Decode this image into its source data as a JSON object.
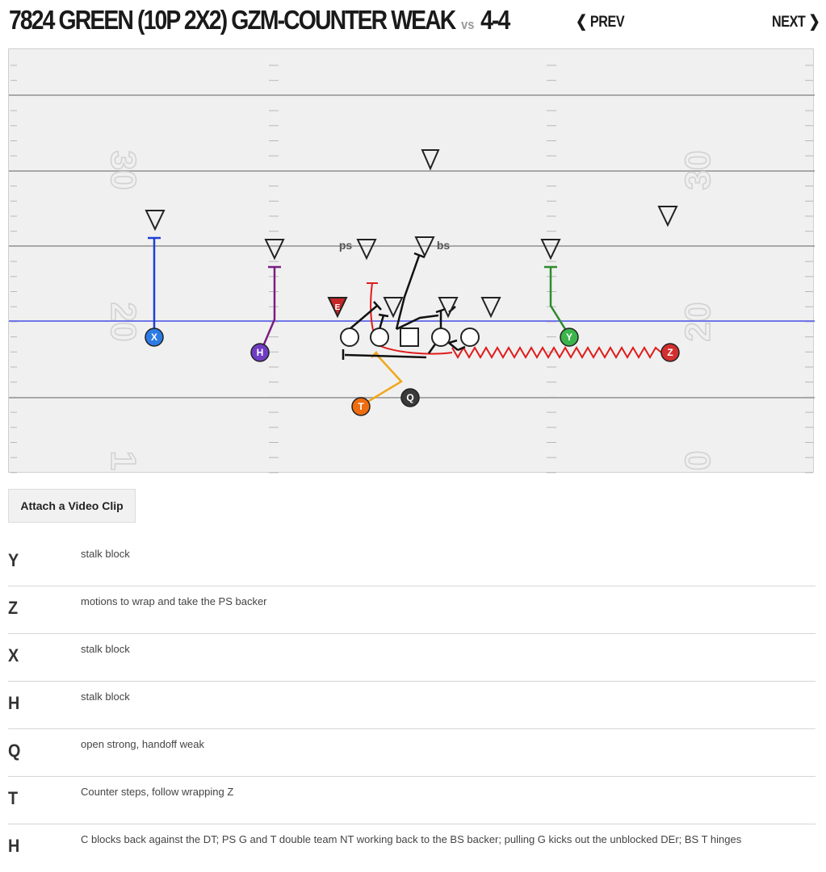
{
  "header": {
    "play_name": "7824 GREEN (10P 2X2) GZM-COUNTER WEAK",
    "vs_label": "vs",
    "defense": "4-4",
    "prev_label": "PREV",
    "next_label": "NEXT",
    "prev_icon": "chevron-left-icon",
    "next_icon": "chevron-right-icon"
  },
  "field": {
    "yard_numbers_left": [
      "30",
      "20",
      "1"
    ],
    "yard_numbers_right": [
      "30",
      "20",
      "0"
    ],
    "scrimmage_line_color": "#6f76e8",
    "defenders": [
      {
        "label": ""
      },
      {
        "label": ""
      },
      {
        "label": ""
      },
      {
        "label": ""
      },
      {
        "label": "ps"
      },
      {
        "label": "bs"
      },
      {
        "label": ""
      },
      {
        "label": "E"
      },
      {
        "label": ""
      },
      {
        "label": ""
      },
      {
        "label": ""
      }
    ],
    "offense": [
      {
        "label": "X",
        "color": "#2c7be5"
      },
      {
        "label": "H",
        "color": "#6f3cc3"
      },
      {
        "label": "Y",
        "color": "#3bb54a"
      },
      {
        "label": "Z",
        "color": "#d32f2f"
      },
      {
        "label": "Q",
        "color": "#3a3a3a"
      },
      {
        "label": "T",
        "color": "#ef6c0f"
      }
    ]
  },
  "attach_button": "Attach a Video Clip",
  "assignments": [
    {
      "pos": "Y",
      "desc": "stalk block"
    },
    {
      "pos": "Z",
      "desc": "motions to wrap and take the PS backer"
    },
    {
      "pos": "X",
      "desc": "stalk block"
    },
    {
      "pos": "H",
      "desc": "stalk block"
    },
    {
      "pos": "Q",
      "desc": "open strong, handoff weak"
    },
    {
      "pos": "T",
      "desc": "Counter steps, follow wrapping Z"
    },
    {
      "pos": "H",
      "desc": "C blocks back against the DT; PS G and T double team NT working back to the BS backer; pulling G kicks out the unblocked DEr; BS T hinges"
    }
  ]
}
